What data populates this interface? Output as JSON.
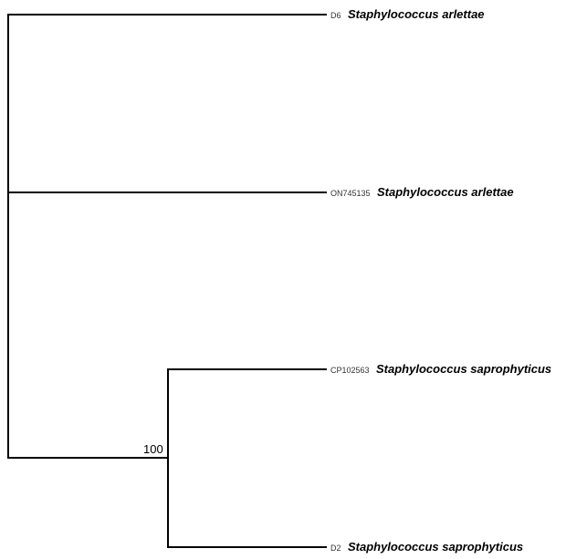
{
  "tree": {
    "leaves": [
      {
        "accession": "D6",
        "species": "Staphylococcus arlettae"
      },
      {
        "accession": "ON745135",
        "species": "Staphylococcus arlettae"
      },
      {
        "accession": "CP102563",
        "species": "Staphylococcus saprophyticus"
      },
      {
        "accession": "D2",
        "species": "Staphylococcus saprophyticus"
      }
    ],
    "bootstrap": "100",
    "colors": {
      "branch": "#000000",
      "label": "#000000",
      "accession": "#333333"
    }
  }
}
